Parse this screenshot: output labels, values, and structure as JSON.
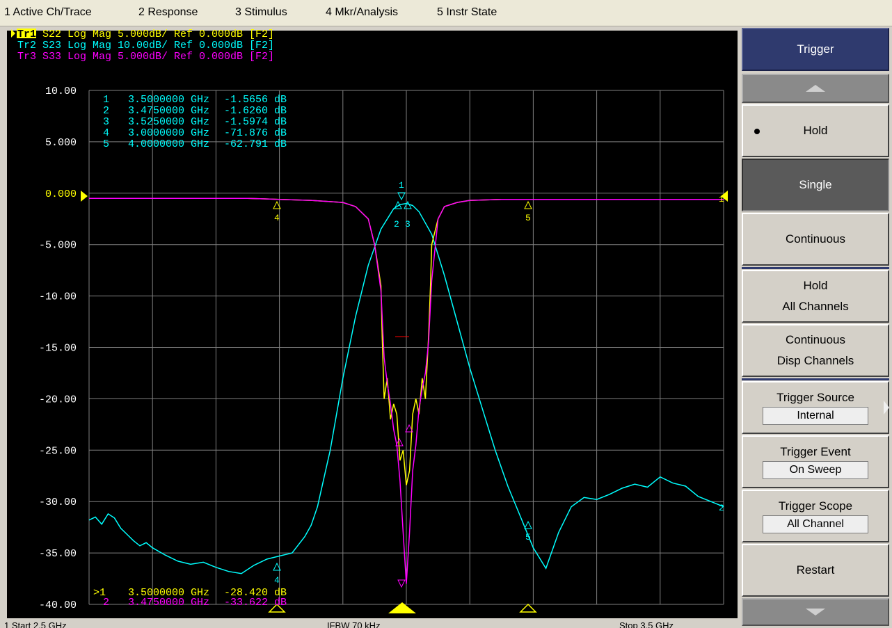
{
  "menu": [
    {
      "label": "1 Active Ch/Trace"
    },
    {
      "label": "2 Response"
    },
    {
      "label": "3 Stimulus"
    },
    {
      "label": "4 Mkr/Analysis"
    },
    {
      "label": "5 Instr State"
    }
  ],
  "traces": [
    {
      "id": "Tr1",
      "text": " S22 Log Mag 5.000dB/ Ref 0.000dB [F2]",
      "color": "#ffff00"
    },
    {
      "id": "Tr2",
      "text": " S23 Log Mag 10.00dB/ Ref 0.000dB [F2]",
      "color": "#00ffff"
    },
    {
      "id": "Tr3",
      "text": " S33 Log Mag 5.000dB/ Ref 0.000dB [F2]",
      "color": "#ff00ff"
    }
  ],
  "marker_table": [
    {
      "n": "1",
      "freq": "3.5000000 GHz",
      "val": "-1.5656 dB"
    },
    {
      "n": "2",
      "freq": "3.4750000 GHz",
      "val": "-1.6260 dB"
    },
    {
      "n": "3",
      "freq": "3.5250000 GHz",
      "val": "-1.5974 dB"
    },
    {
      "n": "4",
      "freq": "3.0000000 GHz",
      "val": "-71.876 dB"
    },
    {
      "n": "5",
      "freq": "4.0000000 GHz",
      "val": "-62.791 dB"
    }
  ],
  "bottom_marker": {
    "n": ">1",
    "freq": "3.5000000 GHz",
    "val": "-28.420 dB"
  },
  "bottom_marker2": {
    "n": "2",
    "freq": "3.4750000 GHz",
    "val": "-33.622 dB"
  },
  "y_ticks": [
    "10.00",
    "5.000",
    "0.000",
    "-5.000",
    "-10.00",
    "-15.00",
    "-20.00",
    "-25.00",
    "-30.00",
    "-35.00",
    "-40.00"
  ],
  "statusbar": {
    "left": "1 Start 2.5 GHz",
    "mid": "IFBW 70 kHz",
    "right": "Stop 3.5 GHz"
  },
  "softkeys": {
    "title": "Trigger",
    "hold": "Hold",
    "single": "Single",
    "continuous": "Continuous",
    "hold_all_1": "Hold",
    "hold_all_2": "All Channels",
    "cont_disp_1": "Continuous",
    "cont_disp_2": "Disp Channels",
    "trigger_source_label": "Trigger Source",
    "trigger_source_value": "Internal",
    "trigger_event_label": "Trigger Event",
    "trigger_event_value": "On Sweep",
    "trigger_scope_label": "Trigger Scope",
    "trigger_scope_value": "All Channel",
    "restart": "Restart"
  },
  "colors": {
    "yellow": "#ffff00",
    "cyan": "#00ffff",
    "magenta": "#ff00ff",
    "grid": "#808080",
    "background": "#000000"
  },
  "chart_data": {
    "type": "line",
    "title": "",
    "xlabel": "",
    "ylabel": "",
    "ylim": [
      -40,
      10
    ],
    "xlim": [
      0,
      10
    ],
    "series": [
      {
        "name": "Tr2",
        "x": [
          0,
          0.1,
          0.2,
          0.3,
          0.4,
          0.5,
          0.6,
          0.7,
          0.8,
          0.9,
          1.0,
          1.2,
          1.4,
          1.6,
          1.8,
          2.0,
          2.2,
          2.4,
          2.6,
          2.8,
          3.0,
          3.2,
          3.4,
          3.5,
          3.6,
          3.8,
          4.0,
          4.2,
          4.4,
          4.6,
          4.8,
          4.9,
          5.0,
          5.1,
          5.2,
          5.4,
          5.6,
          5.8,
          6.0,
          6.2,
          6.4,
          6.6,
          6.8,
          7.0,
          7.2,
          7.4,
          7.6,
          7.8,
          8.0,
          8.2,
          8.4,
          8.6,
          8.8,
          9.0,
          9.2,
          9.4,
          9.6,
          9.8,
          10.0
        ],
        "values": [
          -31.8,
          -31.5,
          -32.2,
          -31.2,
          -31.6,
          -32.6,
          -33.2,
          -33.8,
          -34.3,
          -34.0,
          -34.5,
          -35.2,
          -35.8,
          -36.1,
          -35.9,
          -36.4,
          -36.8,
          -37.0,
          -36.2,
          -35.6,
          -35.3,
          -35.0,
          -33.4,
          -32.3,
          -30.5,
          -25.0,
          -18.0,
          -12.0,
          -7.0,
          -3.5,
          -1.5,
          -1.1,
          -1.0,
          -1.2,
          -1.8,
          -4.0,
          -8.0,
          -12.5,
          -17.0,
          -21.0,
          -25.0,
          -28.5,
          -31.5,
          -34.5,
          -36.5,
          -33.0,
          -30.5,
          -29.6,
          -29.8,
          -29.3,
          -28.7,
          -28.3,
          -28.6,
          -27.6,
          -28.2,
          -28.5,
          -29.5,
          -30.0,
          -30.5
        ]
      },
      {
        "name": "Tr1",
        "x": [
          0,
          0.5,
          1.0,
          1.5,
          2.0,
          2.5,
          3.0,
          3.5,
          4.0,
          4.2,
          4.4,
          4.5,
          4.6,
          4.62,
          4.65,
          4.7,
          4.75,
          4.8,
          4.85,
          4.9,
          4.95,
          5.0,
          5.05,
          5.1,
          5.15,
          5.2,
          5.25,
          5.3,
          5.35,
          5.38,
          5.4,
          5.5,
          5.6,
          5.8,
          6.0,
          6.5,
          7.0,
          7.5,
          8.0,
          8.5,
          9.0,
          9.5,
          10.0
        ],
        "values": [
          -0.5,
          -0.5,
          -0.5,
          -0.5,
          -0.5,
          -0.5,
          -0.6,
          -0.7,
          -0.9,
          -1.3,
          -2.5,
          -5.0,
          -9.0,
          -14.0,
          -20.0,
          -18.0,
          -22.0,
          -20.5,
          -21.5,
          -26.0,
          -25.0,
          -28.4,
          -27.0,
          -21.5,
          -20.0,
          -21.5,
          -18.0,
          -20.0,
          -14.0,
          -9.0,
          -5.0,
          -2.5,
          -1.3,
          -0.9,
          -0.7,
          -0.6,
          -0.6,
          -0.6,
          -0.6,
          -0.6,
          -0.6,
          -0.6,
          -0.6
        ]
      },
      {
        "name": "Tr3",
        "x": [
          0,
          0.5,
          1.0,
          1.5,
          2.0,
          2.5,
          3.0,
          3.5,
          4.0,
          4.2,
          4.4,
          4.5,
          4.6,
          4.65,
          4.7,
          4.75,
          4.8,
          4.85,
          4.9,
          4.95,
          5.0,
          5.05,
          5.1,
          5.15,
          5.2,
          5.25,
          5.3,
          5.35,
          5.4,
          5.5,
          5.6,
          5.8,
          6.0,
          6.5,
          7.0,
          7.5,
          8.0,
          8.5,
          9.0,
          9.5,
          10.0
        ],
        "values": [
          -0.5,
          -0.5,
          -0.5,
          -0.5,
          -0.5,
          -0.5,
          -0.6,
          -0.7,
          -0.9,
          -1.3,
          -2.5,
          -5.0,
          -9.5,
          -16.0,
          -18.5,
          -20.5,
          -23.0,
          -24.5,
          -28.0,
          -33.0,
          -38.0,
          -33.0,
          -27.0,
          -24.5,
          -21.0,
          -19.0,
          -17.5,
          -14.5,
          -8.5,
          -2.5,
          -1.3,
          -0.9,
          -0.7,
          -0.6,
          -0.6,
          -0.6,
          -0.6,
          -0.6,
          -0.6,
          -0.6,
          -0.6
        ]
      }
    ]
  }
}
